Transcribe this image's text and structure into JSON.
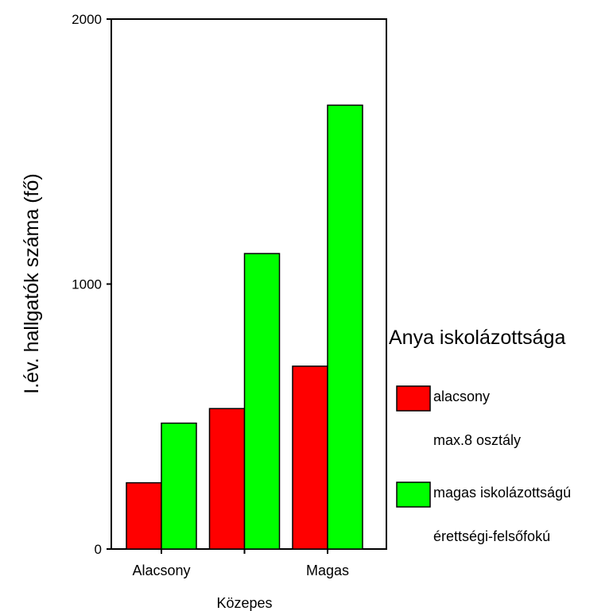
{
  "chart_data": {
    "type": "bar",
    "categories": [
      "Alacsony",
      "Közepes",
      "Magas"
    ],
    "series": [
      {
        "name": "alacsony max.8 osztály",
        "name_lines": [
          "alacsony",
          "max.8 osztály"
        ],
        "color": "#ff0000",
        "values": [
          250,
          530,
          690
        ]
      },
      {
        "name": "magas iskolázottságú érettségi-felsőfokú",
        "name_lines": [
          "magas iskolázottságú",
          "érettségi-felsőfokú"
        ],
        "color": "#00ff00",
        "values": [
          475,
          1115,
          1675
        ]
      }
    ],
    "ylabel": "I.év. hallgatók száma (fő)",
    "xlabel": "",
    "ylim": [
      0,
      2000
    ],
    "yticks": [
      0,
      1000,
      2000
    ],
    "legend_title": "Anya iskolázottsága",
    "legend_position": "right",
    "grid": false
  }
}
